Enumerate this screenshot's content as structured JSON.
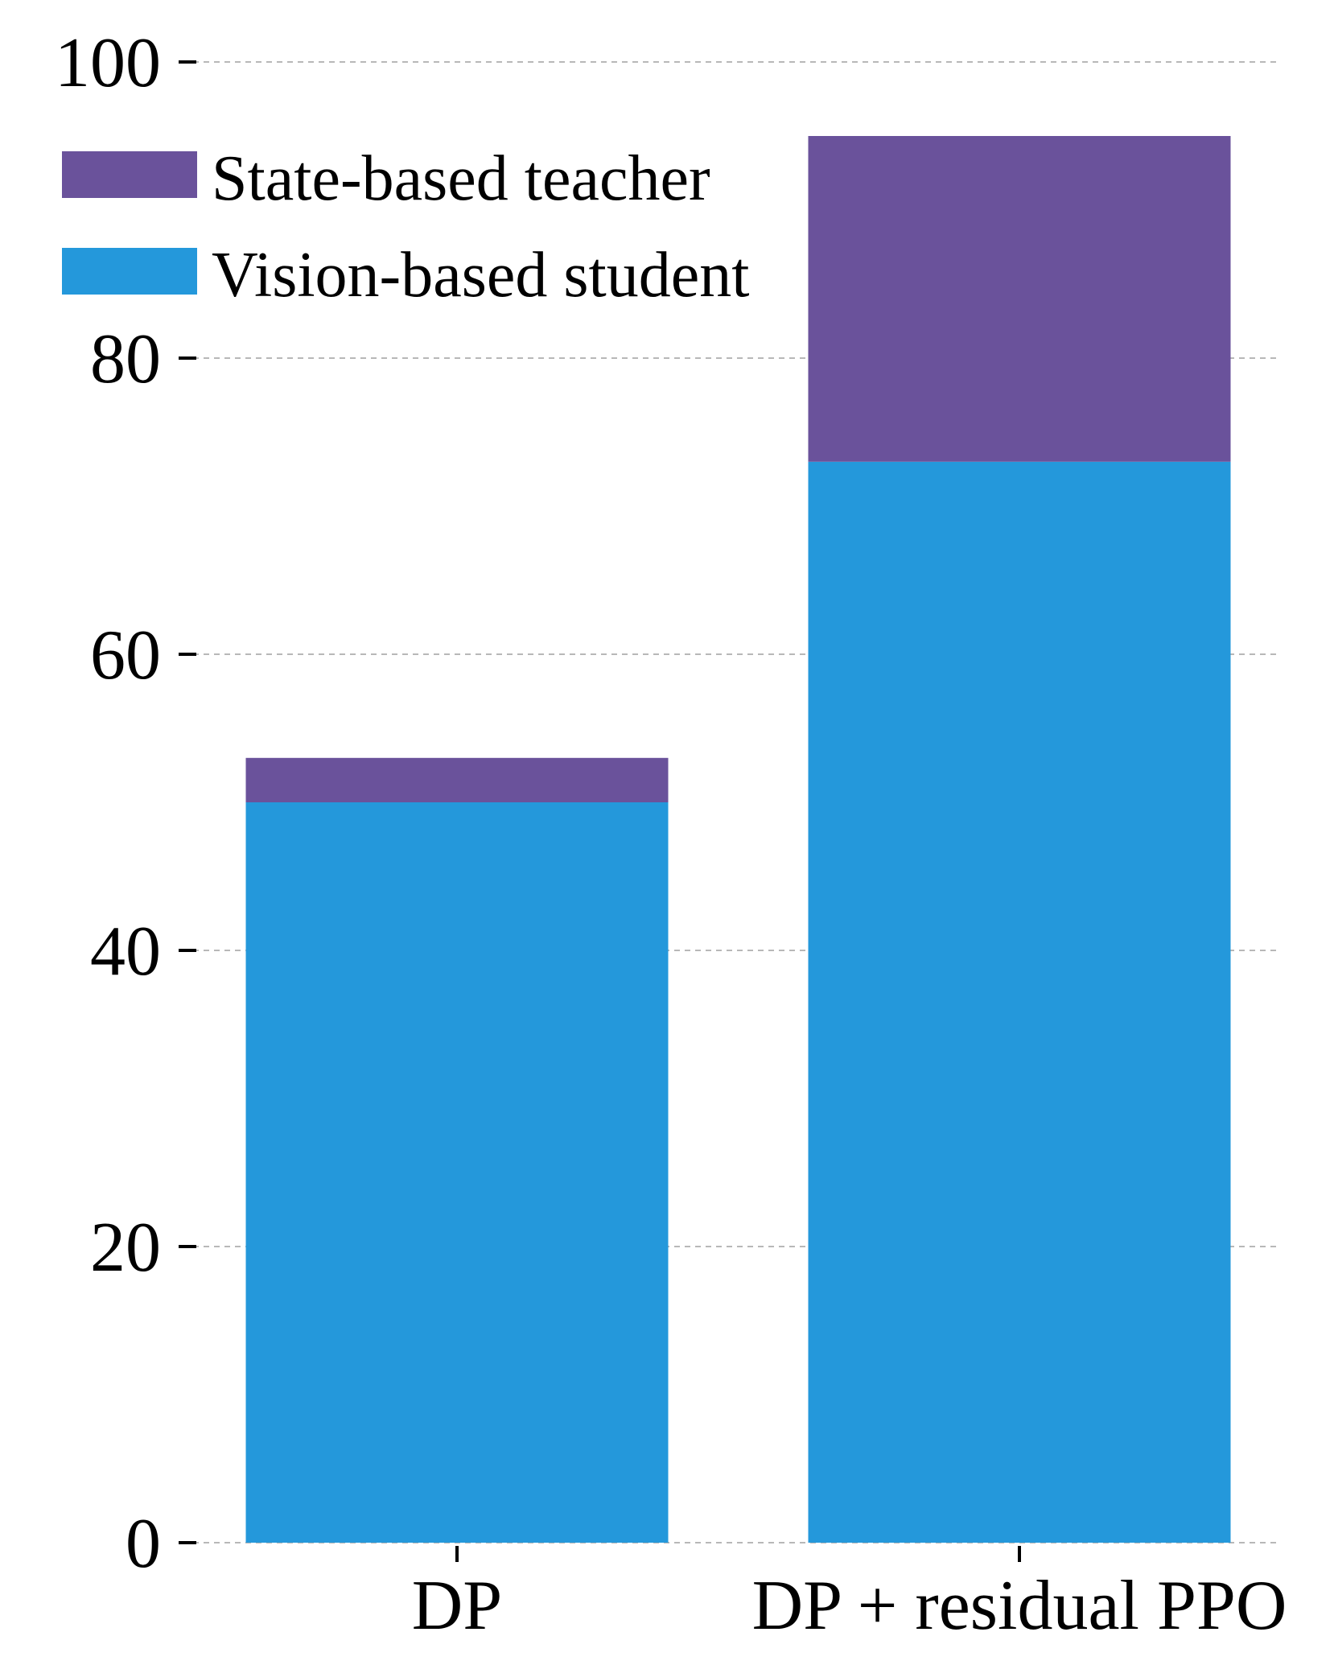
{
  "chart_data": {
    "type": "bar",
    "stacked": true,
    "title": "",
    "xlabel": "",
    "ylabel": "",
    "categories": [
      "DP",
      "DP + residual PPO"
    ],
    "series": [
      {
        "name": "Vision-based student",
        "color": "#2498DB",
        "values": [
          50,
          73
        ]
      },
      {
        "name": "State-based teacher",
        "color": "#6A529B",
        "values": [
          3,
          22
        ]
      }
    ],
    "ylim": [
      0,
      100
    ],
    "yticks": [
      "0",
      "20",
      "40",
      "60",
      "80",
      "100"
    ],
    "grid": true,
    "legend": {
      "position": "top-left",
      "entries": [
        "State-based teacher",
        "Vision-based student"
      ]
    }
  }
}
